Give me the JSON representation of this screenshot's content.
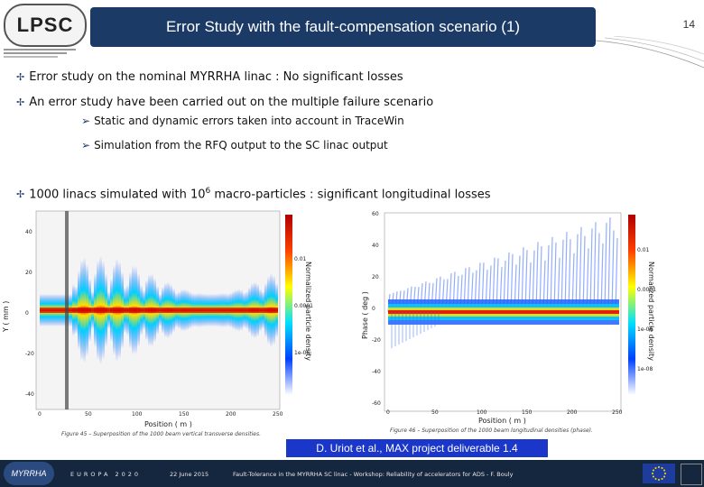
{
  "header": {
    "title": "Error Study with the fault-compensation scenario (1)",
    "page_number": "14",
    "logo_text": "LPSC"
  },
  "bullets": [
    {
      "text": "Error study on the nominal MYRRHA linac : No significant losses"
    },
    {
      "text": "An error study have been carried out on the multiple failure scenario"
    }
  ],
  "sub_bullets": [
    {
      "text": "Static and dynamic errors taken into account in TraceWin"
    },
    {
      "text": "Simulation from the RFQ output to the SC linac output"
    }
  ],
  "bullet3": {
    "prefix": "1000 linacs simulated with 10",
    "sup": "6",
    "suffix": " macro-particles : significant longitudinal losses"
  },
  "figure_left": {
    "ylabel": "Y ( mm )",
    "xlabel": "Position ( m )",
    "colorbar_label": "Normalized particle density",
    "caption": "Figure 45 – Superposition of the 1000 beam vertical transverse densities.",
    "yticks": [
      "40",
      "20",
      "0",
      "-20",
      "-40"
    ],
    "xticks": [
      "0",
      "50",
      "100",
      "150",
      "200",
      "250"
    ],
    "cbticks": [
      "0.01",
      "0.0001",
      "1e-06"
    ]
  },
  "figure_right": {
    "ylabel": "Phase ( deg )",
    "xlabel": "Position ( m )",
    "colorbar_label": "Normalized particle density",
    "caption": "Figure 46 – Superposition of the 1000 beam longitudinal densities (phase).",
    "yticks": [
      "60",
      "40",
      "20",
      "0",
      "-20",
      "-40",
      "-60"
    ],
    "xticks": [
      "0",
      "50",
      "100",
      "150",
      "200",
      "250"
    ],
    "cbticks": [
      "0.01",
      "0.0001",
      "1e-06",
      "1e-08"
    ]
  },
  "credit": "D. Uriot et al., MAX project deliverable 1.4",
  "footer": {
    "conference": "EUROPA 2020",
    "date": "22 June 2015",
    "talk": "Fault-Tolerance in the MYRRHA SC linac - Workshop: Reliability of accelerators for ADS - F. Bouly"
  },
  "colors": {
    "title_bg": "#1b3a66",
    "credit_bg": "#1a37c9",
    "footer_bg": "#15263f"
  }
}
